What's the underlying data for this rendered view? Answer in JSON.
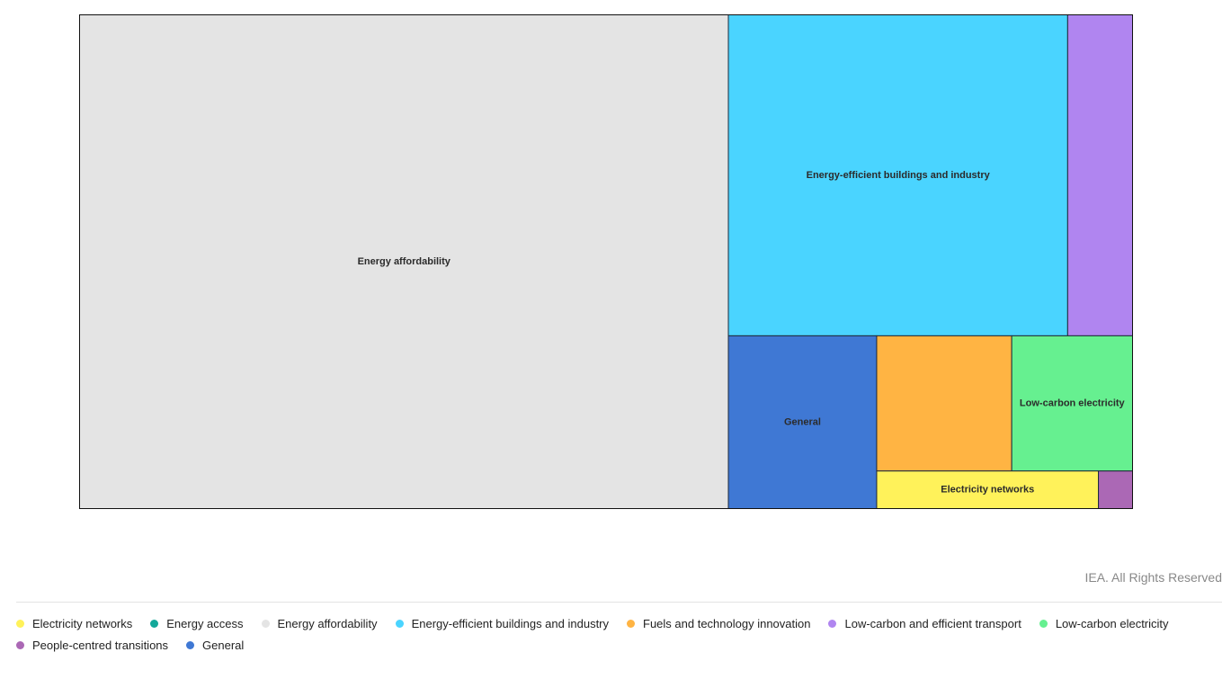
{
  "chart_data": {
    "type": "treemap",
    "title": "",
    "series": [
      {
        "name": "Energy affordability",
        "value": 100,
        "color": "#e4e4e4",
        "label": "Energy affordability"
      },
      {
        "name": "Energy-efficient buildings and industry",
        "value": 34,
        "color": "#4ad4ff",
        "label": "Energy-efficient buildings and industry"
      },
      {
        "name": "Low-carbon and efficient transport",
        "value": 6.5,
        "color": "#b085f0",
        "label": ""
      },
      {
        "name": "General",
        "value": 8,
        "color": "#3f78d4",
        "label": "General"
      },
      {
        "name": "Fuels and technology innovation",
        "value": 5.7,
        "color": "#ffb443",
        "label": ""
      },
      {
        "name": "Low-carbon electricity",
        "value": 5.1,
        "color": "#66f090",
        "label": "Low-carbon electricity"
      },
      {
        "name": "Electricity networks",
        "value": 2.6,
        "color": "#fff25a",
        "label": "Electricity networks"
      },
      {
        "name": "People-centred transitions",
        "value": 0.4,
        "color": "#ab68b5",
        "label": ""
      }
    ]
  },
  "credit": "IEA. All Rights Reserved",
  "legend": [
    {
      "label": "Electricity networks",
      "color": "#fff25a"
    },
    {
      "label": "Energy access",
      "color": "#13a89a"
    },
    {
      "label": "Energy affordability",
      "color": "#e4e4e4"
    },
    {
      "label": "Energy-efficient buildings and industry",
      "color": "#4ad4ff"
    },
    {
      "label": "Fuels and technology innovation",
      "color": "#ffb443"
    },
    {
      "label": "Low-carbon and efficient transport",
      "color": "#b085f0"
    },
    {
      "label": "Low-carbon electricity",
      "color": "#66f090"
    },
    {
      "label": "People-centred transitions",
      "color": "#ab68b5"
    },
    {
      "label": "General",
      "color": "#3f78d4"
    }
  ]
}
